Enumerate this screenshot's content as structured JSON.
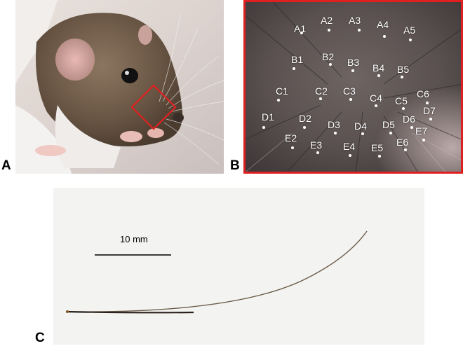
{
  "panels": {
    "a": {
      "label": "A",
      "roi_color": "#e02020"
    },
    "b": {
      "label": "B",
      "border_color": "#e02020",
      "whiskers": [
        "A1",
        "A2",
        "A3",
        "A4",
        "A5",
        "B1",
        "B2",
        "B3",
        "B4",
        "B5",
        "C1",
        "C2",
        "C3",
        "C4",
        "C5",
        "C6",
        "D1",
        "D2",
        "D3",
        "D4",
        "D5",
        "D6",
        "D7",
        "E2",
        "E3",
        "E4",
        "E5",
        "E6",
        "E7"
      ]
    },
    "c": {
      "label": "C",
      "scale_bar_label": "10 mm"
    }
  }
}
